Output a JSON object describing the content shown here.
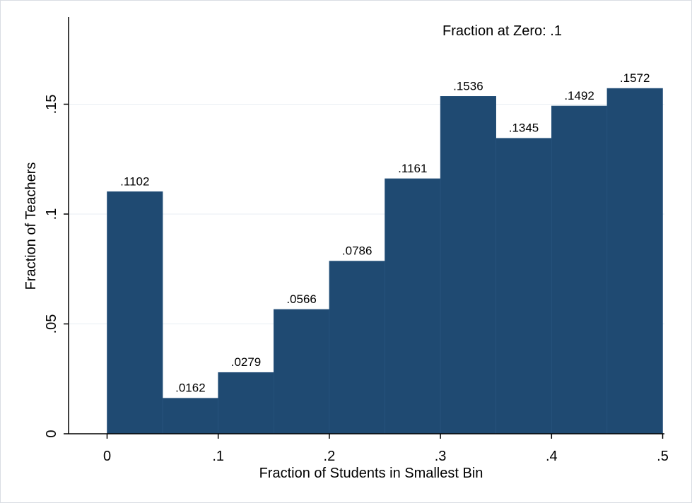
{
  "chart_data": {
    "type": "bar",
    "title": "",
    "xlabel": "Fraction of Students in Smallest Bin",
    "ylabel": "Fraction of Teachers",
    "annotation": "Fraction at Zero: .1",
    "xlim": [
      0,
      0.5
    ],
    "ylim": [
      0,
      0.15
    ],
    "x_ticks": [
      {
        "value": 0,
        "label": "0"
      },
      {
        "value": 0.1,
        "label": ".1"
      },
      {
        "value": 0.2,
        "label": ".2"
      },
      {
        "value": 0.3,
        "label": ".3"
      },
      {
        "value": 0.4,
        "label": ".4"
      },
      {
        "value": 0.5,
        "label": ".5"
      }
    ],
    "y_ticks": [
      {
        "value": 0,
        "label": "0"
      },
      {
        "value": 0.05,
        "label": ".05"
      },
      {
        "value": 0.1,
        "label": ".1"
      },
      {
        "value": 0.15,
        "label": ".15"
      }
    ],
    "grid": true,
    "bar_color": "#1f4a72",
    "bins": [
      {
        "x0": 0.0,
        "x1": 0.05,
        "value": 0.1102,
        "label": ".1102"
      },
      {
        "x0": 0.05,
        "x1": 0.1,
        "value": 0.0162,
        "label": ".0162"
      },
      {
        "x0": 0.1,
        "x1": 0.15,
        "value": 0.0279,
        "label": ".0279"
      },
      {
        "x0": 0.15,
        "x1": 0.2,
        "value": 0.0566,
        "label": ".0566"
      },
      {
        "x0": 0.2,
        "x1": 0.25,
        "value": 0.0786,
        "label": ".0786"
      },
      {
        "x0": 0.25,
        "x1": 0.3,
        "value": 0.1161,
        "label": ".1161"
      },
      {
        "x0": 0.3,
        "x1": 0.35,
        "value": 0.1536,
        "label": ".1536"
      },
      {
        "x0": 0.35,
        "x1": 0.4,
        "value": 0.1345,
        "label": ".1345"
      },
      {
        "x0": 0.4,
        "x1": 0.45,
        "value": 0.1492,
        "label": ".1492"
      },
      {
        "x0": 0.45,
        "x1": 0.5,
        "value": 0.1572,
        "label": ".1572"
      }
    ]
  }
}
